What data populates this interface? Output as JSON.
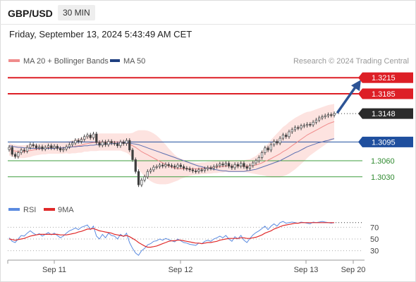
{
  "header": {
    "pair": "GBP/USD",
    "timeframe": "30 MIN",
    "datetime": "Friday, September 13, 2024 5:43:49 AM CET"
  },
  "legend": {
    "ma20_label": "MA 20 + Bollinger Bands",
    "ma50_label": "MA 50",
    "credit": "Research © 2024 Trading Central"
  },
  "colors": {
    "bullish": "#3a3a3a",
    "candle_up": "#3d3d3d",
    "candle_down": "#3d3d3d",
    "resistance": "#dd1f26",
    "support_line": "#1f4f9e",
    "support_green": "#3e9e3e",
    "last_price": "#2b2b2b",
    "ma20": "#f08c8c",
    "ma50": "#5c6fb0",
    "bands_fill": "#fde3e0",
    "arrow": "#2d5496",
    "rsi": "#5b8be0",
    "rsi_ma": "#e02a2a"
  },
  "chart_data": [
    {
      "type": "candlestick",
      "title": "",
      "x_ticks": [
        "Sep 11",
        "Sep 12",
        "Sep 13",
        "Sep 20"
      ],
      "y_range": [
        1.2985,
        1.3235
      ],
      "levels": [
        {
          "label": "1.3215",
          "value": 1.3215,
          "kind": "resistance"
        },
        {
          "label": "1.3185",
          "value": 1.3185,
          "kind": "resistance"
        },
        {
          "label": "1.3148",
          "value": 1.3148,
          "kind": "last"
        },
        {
          "label": "1.3095",
          "value": 1.3095,
          "kind": "pivot"
        },
        {
          "label": "1.3060",
          "value": 1.306,
          "kind": "support"
        },
        {
          "label": "1.3030",
          "value": 1.303,
          "kind": "support"
        }
      ],
      "close": [
        1.3085,
        1.3072,
        1.3068,
        1.3075,
        1.308,
        1.3078,
        1.3085,
        1.309,
        1.3088,
        1.3084,
        1.3086,
        1.3082,
        1.3085,
        1.3088,
        1.3084,
        1.3087,
        1.3083,
        1.308,
        1.3082,
        1.3086,
        1.309,
        1.3093,
        1.3098,
        1.3096,
        1.31,
        1.3105,
        1.3108,
        1.3103,
        1.311,
        1.3094,
        1.3089,
        1.3095,
        1.309,
        1.3096,
        1.3093,
        1.3092,
        1.3088,
        1.3095,
        1.3092,
        1.3098,
        1.308,
        1.3062,
        1.304,
        1.3015,
        1.3024,
        1.303,
        1.304,
        1.3043,
        1.3048,
        1.3049,
        1.3052,
        1.305,
        1.3053,
        1.3051,
        1.305,
        1.3048,
        1.3052,
        1.3049,
        1.3046,
        1.3045,
        1.3043,
        1.3041,
        1.304,
        1.3043,
        1.3042,
        1.3045,
        1.3047,
        1.3046,
        1.3049,
        1.3051,
        1.3054,
        1.3052,
        1.3055,
        1.305,
        1.3047,
        1.3053,
        1.305,
        1.3055,
        1.3049,
        1.3046,
        1.3051,
        1.3056,
        1.306,
        1.3066,
        1.3075,
        1.3084,
        1.308,
        1.309,
        1.3096,
        1.3093,
        1.3102,
        1.3108,
        1.3105,
        1.3114,
        1.3118,
        1.3122,
        1.3121,
        1.3125,
        1.3126,
        1.3128,
        1.3127,
        1.3132,
        1.3136,
        1.314,
        1.3142,
        1.3144,
        1.3146,
        1.3145,
        1.3148
      ],
      "ma20": [
        1.3082,
        1.3079,
        1.3078,
        1.3077,
        1.3077,
        1.3077,
        1.3078,
        1.3079,
        1.308,
        1.3081,
        1.3082,
        1.3083,
        1.3083,
        1.3084,
        1.3084,
        1.3084,
        1.3084,
        1.3084,
        1.3084,
        1.3085,
        1.3085,
        1.3086,
        1.3087,
        1.3088,
        1.3089,
        1.3091,
        1.3092,
        1.3093,
        1.3094,
        1.3094,
        1.3095,
        1.3095,
        1.3095,
        1.3095,
        1.3095,
        1.3095,
        1.3095,
        1.3095,
        1.3094,
        1.3093,
        1.3091,
        1.3088,
        1.3085,
        1.3081,
        1.3077,
        1.3074,
        1.3071,
        1.3068,
        1.3065,
        1.3062,
        1.3059,
        1.3056,
        1.3053,
        1.305,
        1.3048,
        1.3046,
        1.3045,
        1.3045,
        1.3045,
        1.3045,
        1.3045,
        1.3045,
        1.3045,
        1.3045,
        1.3046,
        1.3046,
        1.3047,
        1.3047,
        1.3048,
        1.3048,
        1.3049,
        1.3049,
        1.305,
        1.305,
        1.305,
        1.305,
        1.305,
        1.305,
        1.305,
        1.305,
        1.305,
        1.3051,
        1.3052,
        1.3054,
        1.3056,
        1.3059,
        1.3061,
        1.3064,
        1.3067,
        1.307,
        1.3073,
        1.3077,
        1.308,
        1.3084,
        1.3088,
        1.3092,
        1.3096,
        1.31,
        1.3104,
        1.3108,
        1.3111,
        1.3114,
        1.3117,
        1.312,
        1.3123,
        1.3126,
        1.3129,
        1.3131,
        1.3133
      ],
      "band_width": [
        0.0012,
        0.0012,
        0.0012,
        0.0012,
        0.0012,
        0.0012,
        0.0012,
        0.0012,
        0.0011,
        0.0011,
        0.0011,
        0.0011,
        0.0011,
        0.0011,
        0.0011,
        0.0011,
        0.0011,
        0.0011,
        0.0011,
        0.0011,
        0.0012,
        0.0012,
        0.0013,
        0.0013,
        0.0014,
        0.0014,
        0.0015,
        0.0015,
        0.0016,
        0.0016,
        0.0016,
        0.0016,
        0.0016,
        0.0016,
        0.0016,
        0.0016,
        0.0016,
        0.0016,
        0.0017,
        0.0018,
        0.002,
        0.0024,
        0.003,
        0.0036,
        0.004,
        0.0043,
        0.0045,
        0.0046,
        0.0046,
        0.0045,
        0.0043,
        0.004,
        0.0037,
        0.0033,
        0.0029,
        0.0025,
        0.0022,
        0.0019,
        0.0017,
        0.0015,
        0.0013,
        0.0012,
        0.0011,
        0.0011,
        0.0011,
        0.0011,
        0.0011,
        0.0011,
        0.0011,
        0.0011,
        0.0011,
        0.0011,
        0.0011,
        0.0011,
        0.0011,
        0.0011,
        0.0011,
        0.0011,
        0.0011,
        0.0012,
        0.0013,
        0.0015,
        0.0017,
        0.002,
        0.0023,
        0.0027,
        0.0031,
        0.0035,
        0.0038,
        0.0041,
        0.0044,
        0.0046,
        0.0047,
        0.0048,
        0.0048,
        0.0048,
        0.0047,
        0.0046,
        0.0045,
        0.0043,
        0.0041,
        0.004,
        0.0039,
        0.0038,
        0.0037,
        0.0036,
        0.0035,
        0.0034,
        0.0033
      ],
      "ma50": [
        1.3088,
        1.3087,
        1.3086,
        1.3085,
        1.3085,
        1.3084,
        1.3084,
        1.3083,
        1.3083,
        1.3083,
        1.3083,
        1.3083,
        1.3083,
        1.3083,
        1.3083,
        1.3083,
        1.3084,
        1.3084,
        1.3084,
        1.3085,
        1.3085,
        1.3086,
        1.3086,
        1.3087,
        1.3087,
        1.3088,
        1.3088,
        1.3089,
        1.3089,
        1.309,
        1.309,
        1.3091,
        1.3091,
        1.3092,
        1.3092,
        1.3092,
        1.3093,
        1.3093,
        1.3093,
        1.3093,
        1.3093,
        1.3092,
        1.3091,
        1.309,
        1.3088,
        1.3086,
        1.3084,
        1.3082,
        1.308,
        1.3078,
        1.3076,
        1.3074,
        1.3072,
        1.307,
        1.3068,
        1.3066,
        1.3064,
        1.3062,
        1.306,
        1.3058,
        1.3056,
        1.3054,
        1.3052,
        1.305,
        1.3049,
        1.3047,
        1.3046,
        1.3045,
        1.3044,
        1.3043,
        1.3042,
        1.3041,
        1.3041,
        1.304,
        1.304,
        1.304,
        1.304,
        1.304,
        1.304,
        1.3041,
        1.3042,
        1.3043,
        1.3044,
        1.3046,
        1.3048,
        1.305,
        1.3052,
        1.3054,
        1.3056,
        1.3058,
        1.306,
        1.3063,
        1.3066,
        1.3069,
        1.3072,
        1.3075,
        1.3077,
        1.308,
        1.3083,
        1.3086,
        1.3088,
        1.309,
        1.3092,
        1.3094,
        1.3095,
        1.3097,
        1.3098,
        1.31,
        1.3101
      ]
    },
    {
      "type": "line",
      "title": "",
      "series_names": [
        "RSI",
        "9MA"
      ],
      "y_ticks": [
        70,
        50,
        30
      ],
      "y_range": [
        15,
        85
      ],
      "rsi": [
        52,
        46,
        44,
        50,
        56,
        55,
        60,
        64,
        60,
        57,
        59,
        55,
        58,
        61,
        57,
        60,
        56,
        52,
        55,
        60,
        64,
        66,
        69,
        66,
        70,
        72,
        74,
        66,
        72,
        55,
        50,
        58,
        52,
        60,
        56,
        55,
        50,
        58,
        54,
        60,
        44,
        34,
        26,
        22,
        30,
        34,
        40,
        42,
        46,
        47,
        50,
        48,
        51,
        49,
        47,
        45,
        50,
        47,
        44,
        43,
        41,
        40,
        39,
        43,
        42,
        46,
        48,
        46,
        50,
        52,
        55,
        52,
        56,
        50,
        46,
        54,
        50,
        56,
        48,
        44,
        51,
        57,
        61,
        64,
        68,
        72,
        66,
        72,
        76,
        72,
        78,
        80,
        77,
        78,
        79,
        78,
        77,
        79,
        78,
        77,
        76,
        79,
        78,
        79,
        80,
        79,
        78,
        77,
        78
      ],
      "ma9": [
        50,
        49,
        48,
        49,
        50,
        51,
        53,
        55,
        56,
        57,
        58,
        58,
        58,
        58,
        58,
        58,
        58,
        57,
        57,
        57,
        58,
        59,
        60,
        62,
        63,
        65,
        67,
        67,
        68,
        66,
        64,
        63,
        62,
        61,
        60,
        58,
        57,
        56,
        55,
        56,
        54,
        51,
        48,
        44,
        41,
        38,
        36,
        36,
        37,
        38,
        40,
        42,
        44,
        46,
        47,
        47,
        48,
        48,
        47,
        46,
        45,
        44,
        43,
        43,
        42,
        43,
        44,
        44,
        45,
        46,
        48,
        49,
        50,
        51,
        51,
        51,
        51,
        52,
        52,
        51,
        51,
        52,
        53,
        55,
        57,
        60,
        62,
        64,
        67,
        69,
        71,
        73,
        74,
        75,
        76,
        77,
        77,
        78,
        78,
        78,
        78,
        78,
        78,
        78,
        78,
        78,
        78,
        78,
        78
      ]
    }
  ]
}
